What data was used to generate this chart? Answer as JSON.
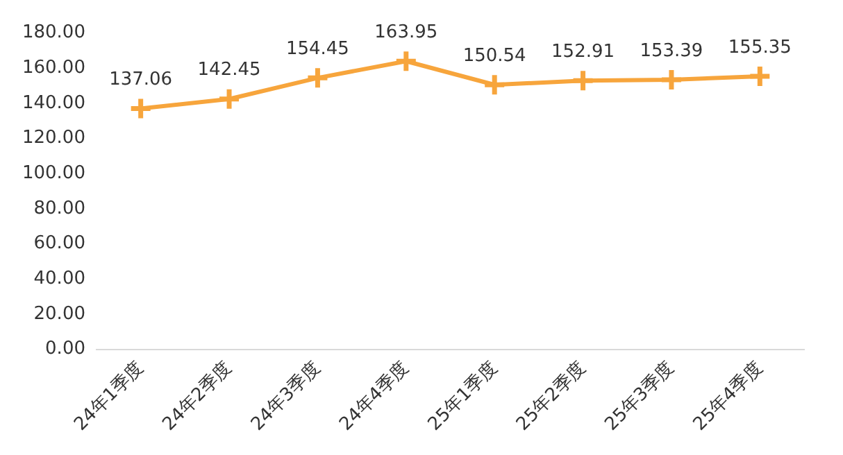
{
  "chart_data": {
    "type": "line",
    "categories": [
      "24年1季度",
      "24年2季度",
      "24年3季度",
      "24年4季度",
      "25年1季度",
      "25年2季度",
      "25年3季度",
      "25年4季度"
    ],
    "series": [
      {
        "color": "#f7a53c",
        "values": [
          137.06,
          142.45,
          154.45,
          163.95,
          150.54,
          152.91,
          153.39,
          155.35
        ]
      }
    ],
    "ylim": [
      0,
      180
    ],
    "yticks": [
      {
        "value": 0,
        "label": "0.00"
      },
      {
        "value": 20,
        "label": "20.00"
      },
      {
        "value": 40,
        "label": "40.00"
      },
      {
        "value": 60,
        "label": "60.00"
      },
      {
        "value": 80,
        "label": "80.00"
      },
      {
        "value": 100,
        "label": "100.00"
      },
      {
        "value": 120,
        "label": "120.00"
      },
      {
        "value": 140,
        "label": "140.00"
      },
      {
        "value": 160,
        "label": "160.00"
      },
      {
        "value": 180,
        "label": "180.00"
      }
    ],
    "grid": false,
    "legend": false,
    "marker": "cross",
    "line_style": "solid",
    "data_labels": true
  }
}
